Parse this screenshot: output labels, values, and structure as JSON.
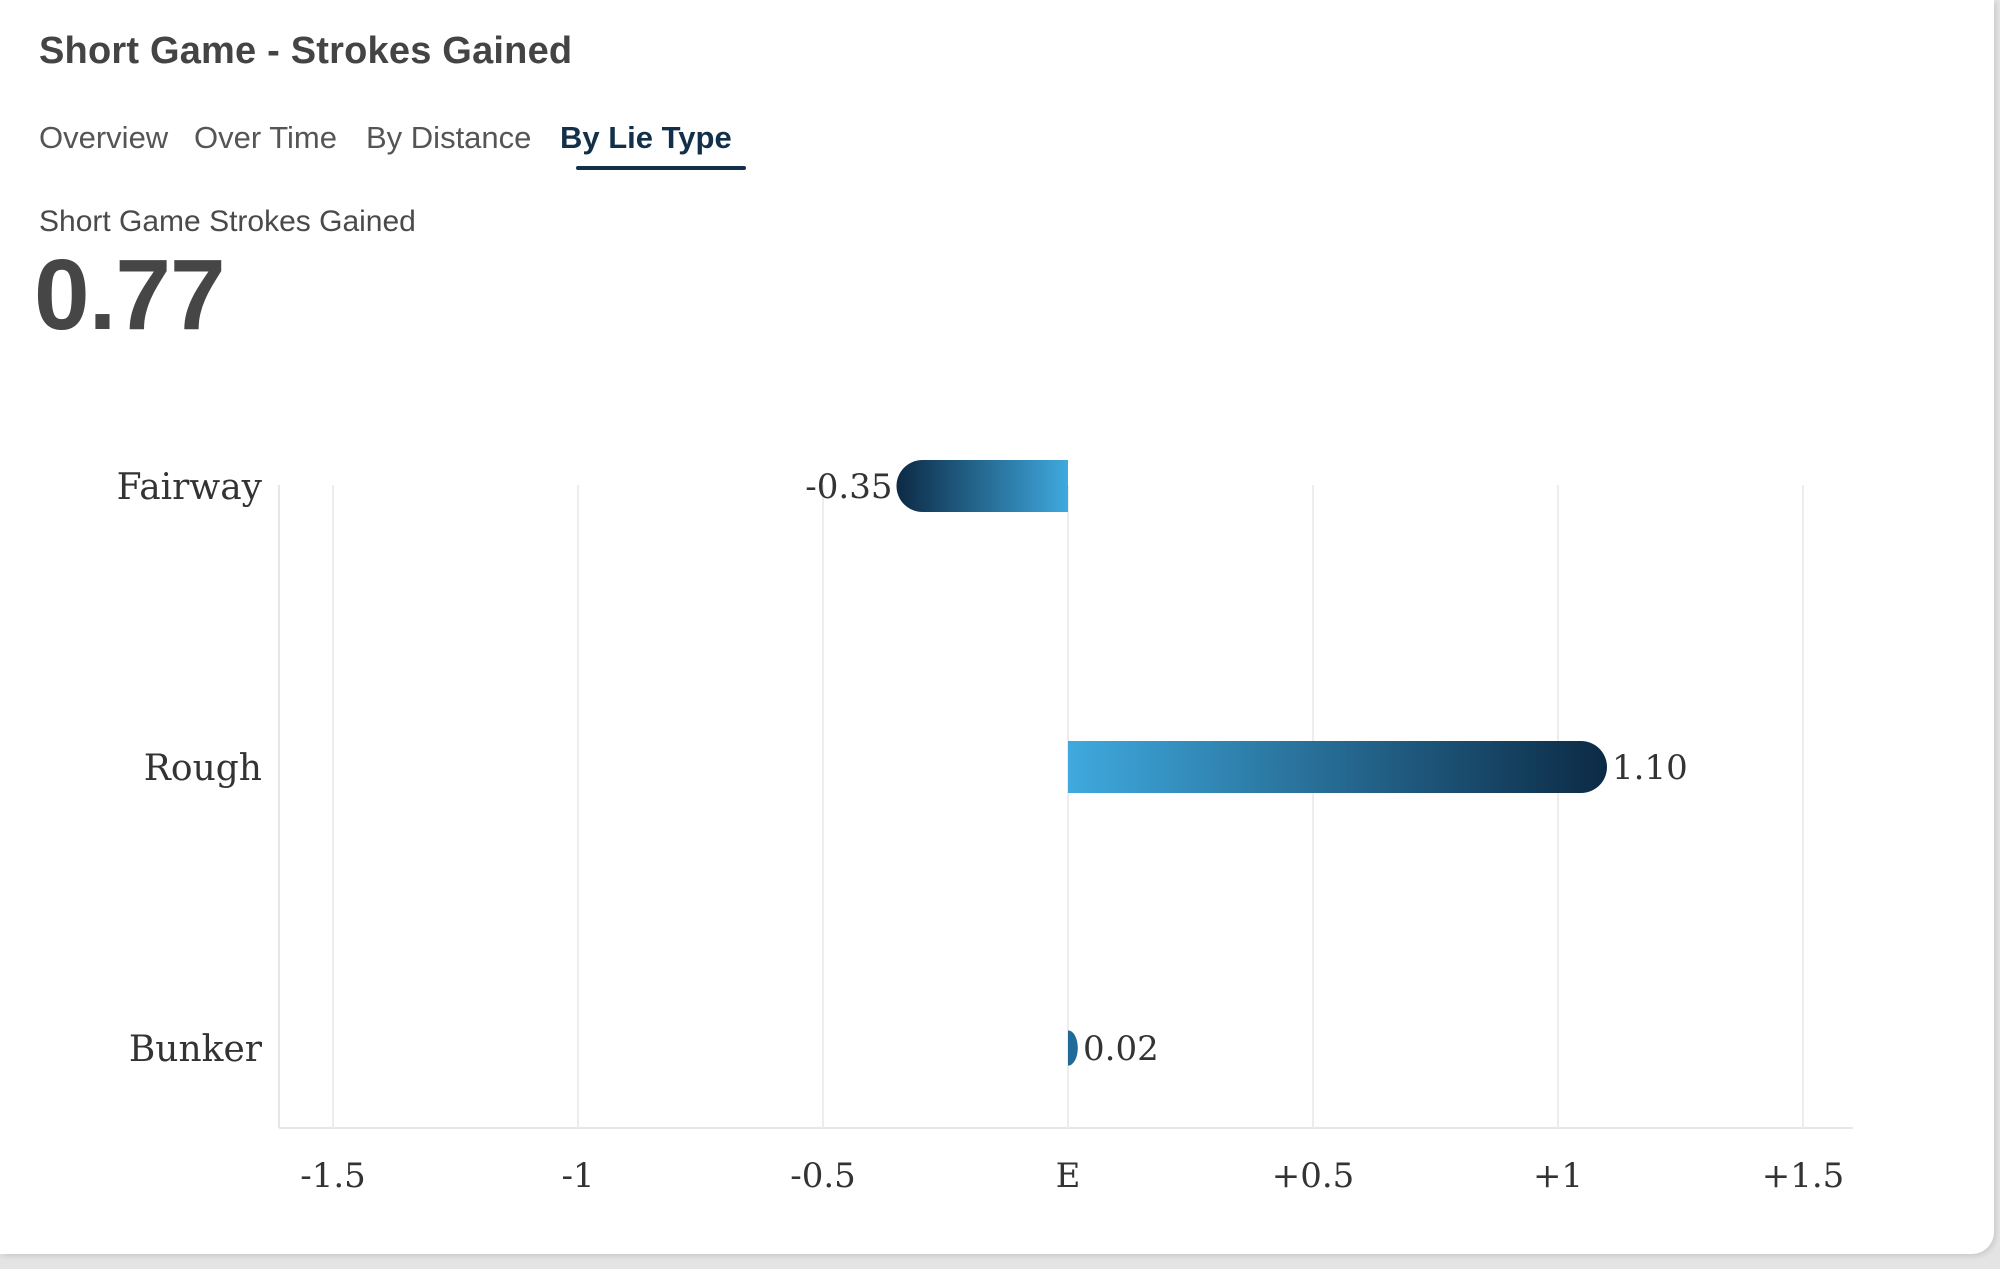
{
  "card": {
    "title": "Short Game - Strokes Gained"
  },
  "tabs": [
    {
      "label": "Overview",
      "active": false
    },
    {
      "label": "Over Time",
      "active": false
    },
    {
      "label": "By Distance",
      "active": false
    },
    {
      "label": "By Lie Type",
      "active": true
    }
  ],
  "summary": {
    "label": "Short Game Strokes Gained",
    "value": "0.77"
  },
  "colors": {
    "bar_dark": "#0c2a45",
    "bar_light": "#3fa9de",
    "accent": "#13304a"
  },
  "chart_data": {
    "type": "bar",
    "orientation": "horizontal",
    "categories": [
      "Fairway",
      "Rough",
      "Bunker"
    ],
    "values": [
      -0.35,
      1.1,
      0.02
    ],
    "value_labels": [
      "-0.35",
      "1.10",
      "0.02"
    ],
    "xlim": [
      -1.6,
      1.6
    ],
    "xticks": [
      -1.5,
      -1,
      -0.5,
      0,
      0.5,
      1,
      1.5
    ],
    "xtick_labels": [
      "-1.5",
      "-1",
      "-0.5",
      "E",
      "+0.5",
      "+1",
      "+1.5"
    ],
    "grid": true,
    "legend": "none"
  }
}
